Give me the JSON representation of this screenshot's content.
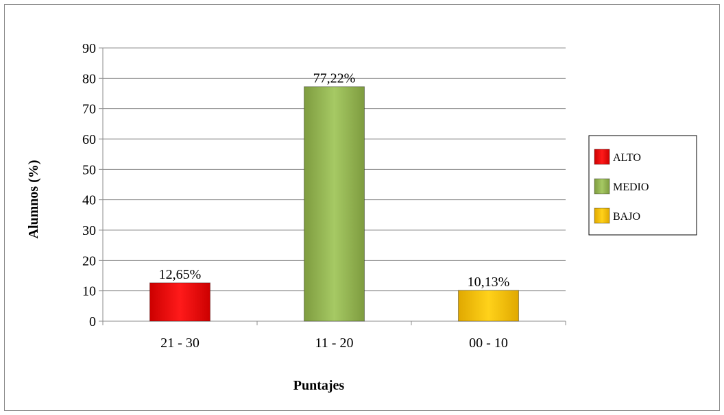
{
  "chart_data": {
    "type": "bar",
    "categories": [
      "21 - 30",
      "11 - 20",
      "00 - 10"
    ],
    "values": [
      12.65,
      77.22,
      10.13
    ],
    "data_labels": [
      "12,65%",
      "77,22%",
      "10,13%"
    ],
    "xlabel": "Puntajes",
    "ylabel": "Alumnos (%)",
    "ylim": [
      0,
      90
    ],
    "yticks": [
      0,
      10,
      20,
      30,
      40,
      50,
      60,
      70,
      80,
      90
    ],
    "grid": true,
    "legend": {
      "placement": "right",
      "entries": [
        "ALTO",
        "MEDIO",
        "BAJO"
      ]
    },
    "colors": [
      "#ff0000",
      "#9bbb59",
      "#ffc000"
    ]
  }
}
